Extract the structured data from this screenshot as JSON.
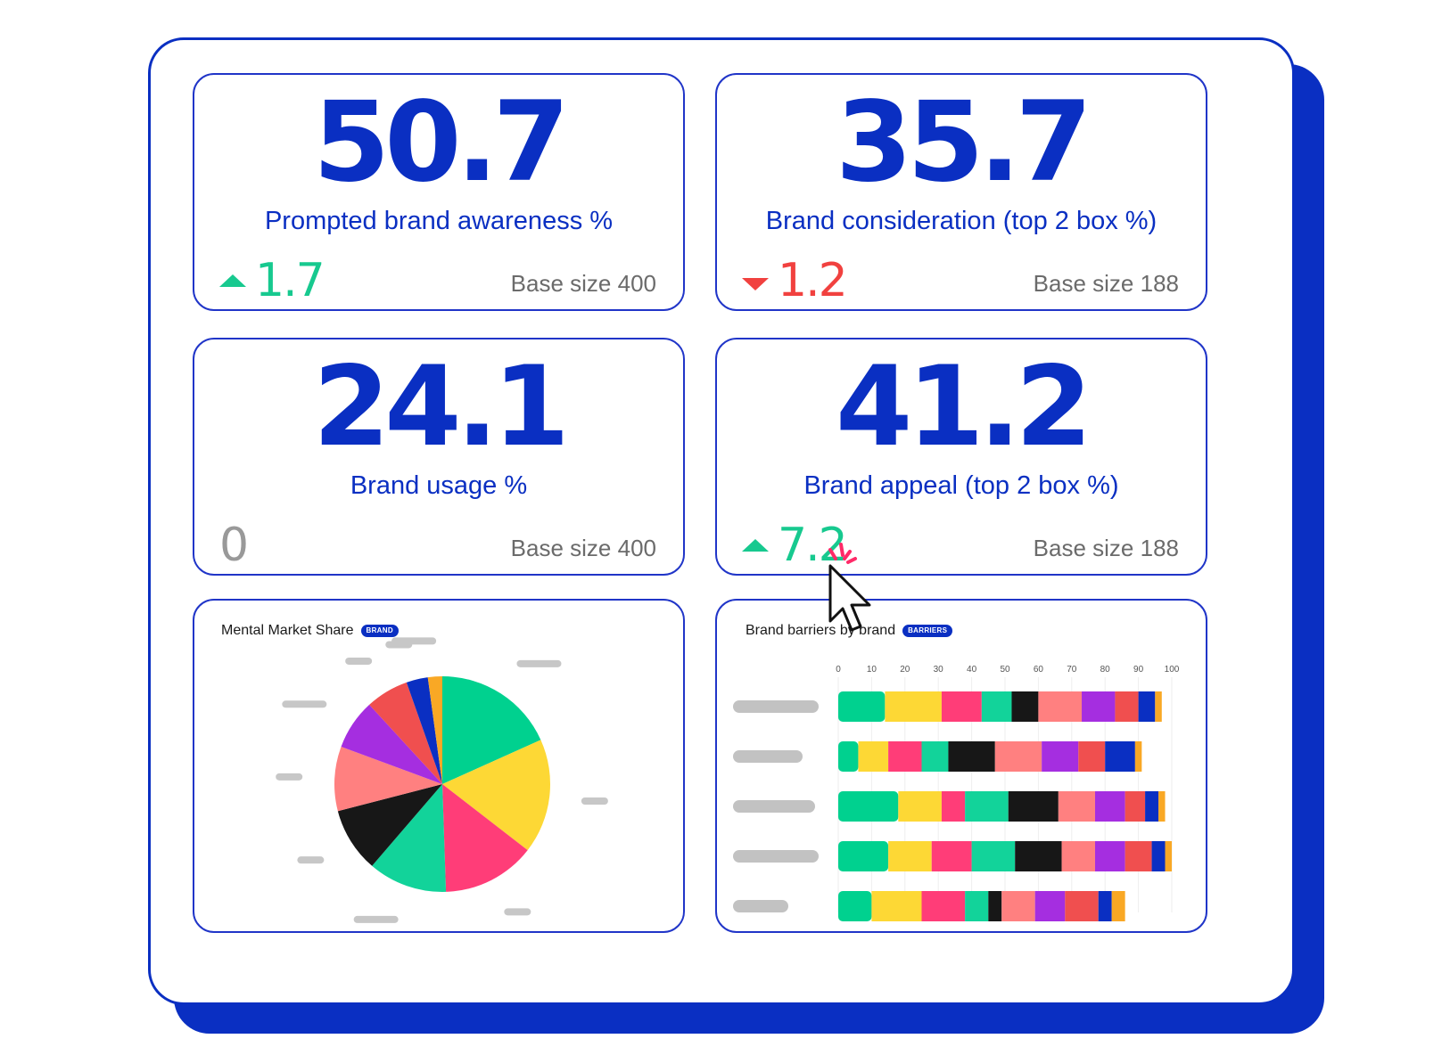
{
  "colors": {
    "primary": "#0a2fc2",
    "positive": "#17c98f",
    "negative": "#f1413f",
    "neutral": "#999999",
    "palette": [
      "#00d18f",
      "#fdd835",
      "#ff3d78",
      "#12d39a",
      "#171717",
      "#ff8080",
      "#a52ee0",
      "#f04f4f",
      "#0a2fc2",
      "#f9a825"
    ]
  },
  "kpis": [
    {
      "value": "50.7",
      "label": "Prompted brand awareness %",
      "delta": "1.7",
      "direction": "up",
      "base": "Base size 400"
    },
    {
      "value": "35.7",
      "label": "Brand consideration (top 2 box %)",
      "delta": "1.2",
      "direction": "down",
      "base": "Base size 188"
    },
    {
      "value": "24.1",
      "label": "Brand usage %",
      "delta": "0",
      "direction": "none",
      "base": "Base size 400"
    },
    {
      "value": "41.2",
      "label": "Brand appeal (top 2 box %)",
      "delta": "7.2",
      "direction": "up",
      "base": "Base size 188"
    }
  ],
  "chart_data": [
    {
      "type": "pie",
      "title": "Mental Market Share",
      "badge": "BRAND",
      "values": [
        17,
        16,
        13,
        11,
        9,
        9,
        7,
        6,
        3,
        2
      ],
      "colors": [
        "#00d18f",
        "#fdd835",
        "#ff3d78",
        "#12d39a",
        "#171717",
        "#ff8080",
        "#a52ee0",
        "#f04f4f",
        "#0a2fc2",
        "#f9a825"
      ]
    },
    {
      "type": "bar",
      "orientation": "horizontal",
      "stacked": true,
      "title": "Brand barriers by brand",
      "badge": "BARRIERS",
      "xlim": [
        0,
        100
      ],
      "xticks": [
        "0",
        "10",
        "20",
        "30",
        "40",
        "50",
        "60",
        "70",
        "80",
        "90",
        "100"
      ],
      "rows": [
        [
          14,
          17,
          12,
          9,
          8,
          13,
          10,
          7,
          5,
          2
        ],
        [
          6,
          9,
          10,
          8,
          14,
          14,
          11,
          8,
          9,
          2
        ],
        [
          18,
          13,
          7,
          13,
          15,
          11,
          9,
          6,
          4,
          2
        ],
        [
          15,
          13,
          12,
          13,
          14,
          10,
          9,
          8,
          4,
          2
        ],
        [
          10,
          15,
          13,
          7,
          4,
          10,
          9,
          10,
          4,
          4
        ]
      ],
      "colors": [
        "#00d18f",
        "#fdd835",
        "#ff3d78",
        "#12d39a",
        "#171717",
        "#ff8080",
        "#a52ee0",
        "#f04f4f",
        "#0a2fc2",
        "#f9a825"
      ]
    }
  ]
}
